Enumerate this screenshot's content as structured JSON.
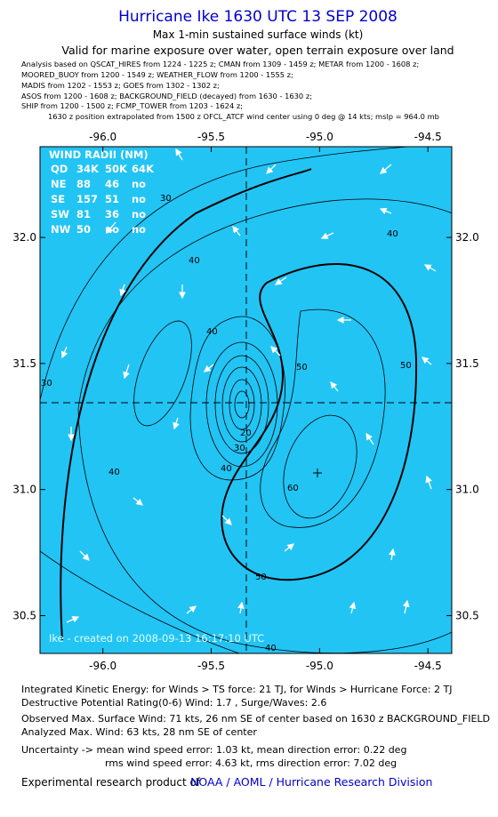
{
  "header": {
    "title": "Hurricane Ike 1630 UTC 13 SEP 2008",
    "subtitle": "Max 1-min sustained surface winds (kt)",
    "validity": "Valid for marine exposure over water, open terrain exposure over land",
    "sources": [
      "Analysis based on  QSCAT_HIRES from 1224 - 1225 z;  CMAN from 1309 - 1459 z;  METAR from 1200 - 1608 z;",
      "MOORED_BUOY from 1200 - 1549 z;  WEATHER_FLOW from 1200 - 1555 z;",
      "MADIS from 1202 - 1553 z;  GOES from 1302 - 1302 z;",
      "ASOS from 1200 - 1608 z;  BACKGROUND_FIELD (decayed) from 1630 - 1630 z;",
      "SHIP from 1200 - 1500 z;  FCMP_TOWER from 1203 - 1624 z;",
      "1630 z position extrapolated from 1500 z OFCL_ATCF wind center using 0 deg @ 14 kts; mslp = 964.0 mb"
    ]
  },
  "map": {
    "xlim": [
      -96.29,
      -94.39
    ],
    "ylim": [
      30.35,
      32.36
    ],
    "xticks": [
      {
        "value": -96,
        "label": "-96.0"
      },
      -95.5,
      {
        "value": -95,
        "label": "-95.0"
      },
      -94.5
    ],
    "yticks": [
      {
        "value": 32,
        "label": "32.0"
      },
      31.5,
      {
        "value": 31,
        "label": "31.0"
      },
      30.5
    ],
    "contour_labels": [
      "30",
      "40",
      "40",
      "40",
      "40",
      "40",
      "50",
      "50",
      "50",
      "60",
      "30",
      "20",
      "30",
      "40"
    ],
    "wind_radii": {
      "title": "WIND RADII (NM)",
      "header": [
        "QD",
        "34K",
        "50K",
        "64K"
      ],
      "rows": [
        [
          "NE",
          "88",
          "46",
          "no"
        ],
        [
          "SE",
          "157",
          "51",
          "no"
        ],
        [
          "SW",
          "81",
          "36",
          "no"
        ],
        [
          "NW",
          "50",
          "no",
          "no"
        ]
      ]
    },
    "credit": "Ike - created on 2008-09-13 16:17:10 UTC"
  },
  "footer": {
    "lines": [
      "Integrated Kinetic Energy:  for Winds > TS force: 21 TJ,  for Winds > Hurricane Force: 2 TJ",
      "Destructive Potential Rating(0-6)   Wind: 1.7 , Surge/Waves: 2.6",
      "Observed Max. Surface Wind: 71 kts, 26 nm SE of center based on 1630 z BACKGROUND_FIELD",
      "Analyzed Max. Wind: 63 kts, 28 nm SE of center",
      "Uncertainty -> mean wind speed error: 1.03 kt,   mean direction error: 0.22 deg",
      "rms wind speed error: 4.63 kt,   rms direction error: 7.02 deg"
    ],
    "product": "Experimental research product of",
    "org": "NOAA / AOML / Hurricane Research Division"
  }
}
